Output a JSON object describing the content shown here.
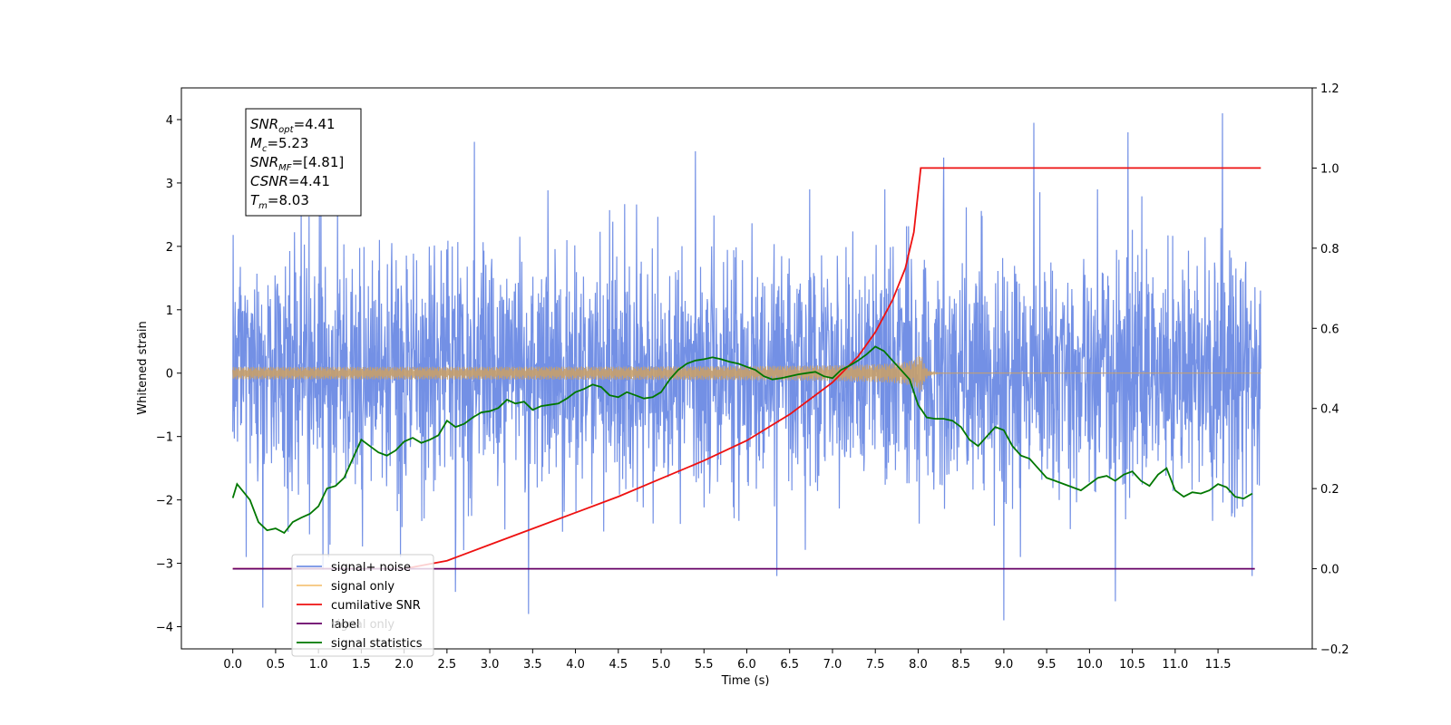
{
  "chart_data": {
    "type": "line",
    "title": "",
    "xlabel": "Time (s)",
    "ylabel": "Whitened strain",
    "ylabel_right": "",
    "xlim": [
      -0.6,
      12.6
    ],
    "ylim": [
      -4.35,
      4.5
    ],
    "ylim_right": [
      -0.2,
      1.2
    ],
    "x_ticks": [
      "0.0",
      "0.5",
      "1.0",
      "1.5",
      "2.0",
      "2.5",
      "3.0",
      "3.5",
      "4.0",
      "4.5",
      "5.0",
      "5.5",
      "6.0",
      "6.5",
      "7.0",
      "7.5",
      "8.0",
      "8.5",
      "9.0",
      "9.5",
      "10.0",
      "10.5",
      "11.0",
      "11.5"
    ],
    "y_ticks": [
      "4",
      "3",
      "2",
      "1",
      "0",
      "−1",
      "−2",
      "−3",
      "−4"
    ],
    "y_ticks_right": [
      "1.2",
      "1.0",
      "0.8",
      "0.6",
      "0.4",
      "0.2",
      "0.0",
      "−0.2"
    ],
    "grid": false,
    "legend_position": "lower-left",
    "colors": {
      "signal_noise": "#5b7de0",
      "signal_only": "#c8a06a",
      "cumulative_snr": "#ee1111",
      "label": "#660066",
      "statistics": "#007700"
    },
    "series": [
      {
        "name": "signal+ noise",
        "axis": "left",
        "style": "noise-band",
        "x_range": [
          0.0,
          12.0
        ],
        "amplitude_std": 1.0,
        "extreme_peaks": [
          [
            1.05,
            -3.1
          ],
          [
            2.82,
            3.65
          ],
          [
            3.45,
            -3.8
          ],
          [
            6.35,
            -3.2
          ],
          [
            9.0,
            -3.9
          ],
          [
            9.35,
            3.95
          ],
          [
            10.45,
            3.8
          ],
          [
            11.55,
            4.1
          ],
          [
            11.9,
            -3.2
          ],
          [
            5.4,
            3.5
          ],
          [
            8.3,
            3.4
          ],
          [
            0.35,
            -3.7
          ],
          [
            2.6,
            -3.45
          ],
          [
            10.3,
            -3.6
          ]
        ]
      },
      {
        "name": "signal only",
        "axis": "left",
        "style": "chirp",
        "x_range": [
          0.0,
          12.0
        ],
        "merger_time": 8.03,
        "peak_amplitude": 0.35
      },
      {
        "name": "cumilative SNR",
        "axis": "right",
        "style": "line",
        "x": [
          0.0,
          1.0,
          2.0,
          2.5,
          3.0,
          3.5,
          4.0,
          4.5,
          5.0,
          5.5,
          6.0,
          6.5,
          7.0,
          7.3,
          7.5,
          7.7,
          7.85,
          7.95,
          8.03,
          12.0
        ],
        "values": [
          0.0,
          0.0,
          0.0,
          0.02,
          0.06,
          0.1,
          0.14,
          0.18,
          0.225,
          0.27,
          0.32,
          0.385,
          0.465,
          0.53,
          0.59,
          0.67,
          0.75,
          0.84,
          1.0,
          1.0
        ]
      },
      {
        "name": "label",
        "axis": "right",
        "style": "line",
        "x": [
          0.0,
          11.93
        ],
        "values": [
          0.0,
          0.0
        ]
      },
      {
        "name": "signal only",
        "axis": "right",
        "style": "hidden",
        "x": [],
        "values": []
      },
      {
        "name": "signal statistics",
        "axis": "left",
        "style": "line",
        "x": [
          0.0,
          0.05,
          0.2,
          0.3,
          0.4,
          0.5,
          0.6,
          0.7,
          0.8,
          0.9,
          1.0,
          1.1,
          1.2,
          1.3,
          1.4,
          1.5,
          1.6,
          1.7,
          1.8,
          1.9,
          2.0,
          2.1,
          2.2,
          2.3,
          2.4,
          2.5,
          2.6,
          2.7,
          2.8,
          2.9,
          3.0,
          3.1,
          3.2,
          3.3,
          3.4,
          3.5,
          3.6,
          3.7,
          3.8,
          3.9,
          4.0,
          4.1,
          4.2,
          4.3,
          4.4,
          4.5,
          4.6,
          4.7,
          4.8,
          4.9,
          5.0,
          5.1,
          5.2,
          5.3,
          5.4,
          5.5,
          5.6,
          5.7,
          5.8,
          5.9,
          6.0,
          6.1,
          6.2,
          6.3,
          6.4,
          6.5,
          6.6,
          6.7,
          6.8,
          6.9,
          7.0,
          7.1,
          7.2,
          7.3,
          7.4,
          7.5,
          7.6,
          7.7,
          7.8,
          7.9,
          8.0,
          8.1,
          8.2,
          8.3,
          8.4,
          8.5,
          8.6,
          8.7,
          8.8,
          8.9,
          9.0,
          9.1,
          9.2,
          9.3,
          9.4,
          9.5,
          9.6,
          9.7,
          9.8,
          9.9,
          10.0,
          10.1,
          10.2,
          10.3,
          10.4,
          10.5,
          10.6,
          10.7,
          10.8,
          10.9,
          11.0,
          11.1,
          11.2,
          11.3,
          11.4,
          11.5,
          11.6,
          11.7,
          11.8,
          11.9
        ],
        "values": [
          -1.97,
          -1.75,
          -2.0,
          -2.35,
          -2.48,
          -2.45,
          -2.52,
          -2.35,
          -2.28,
          -2.22,
          -2.1,
          -1.82,
          -1.78,
          -1.65,
          -1.35,
          -1.05,
          -1.15,
          -1.25,
          -1.3,
          -1.22,
          -1.08,
          -1.02,
          -1.1,
          -1.05,
          -0.98,
          -0.75,
          -0.85,
          -0.8,
          -0.7,
          -0.62,
          -0.6,
          -0.55,
          -0.42,
          -0.48,
          -0.45,
          -0.58,
          -0.52,
          -0.5,
          -0.48,
          -0.4,
          -0.3,
          -0.25,
          -0.18,
          -0.22,
          -0.35,
          -0.38,
          -0.3,
          -0.35,
          -0.4,
          -0.38,
          -0.3,
          -0.1,
          0.05,
          0.15,
          0.2,
          0.22,
          0.25,
          0.22,
          0.18,
          0.15,
          0.1,
          0.05,
          -0.05,
          -0.1,
          -0.08,
          -0.05,
          -0.02,
          0.0,
          0.02,
          -0.05,
          -0.08,
          0.05,
          0.12,
          0.2,
          0.3,
          0.42,
          0.35,
          0.2,
          0.05,
          -0.1,
          -0.5,
          -0.7,
          -0.72,
          -0.72,
          -0.75,
          -0.85,
          -1.05,
          -1.15,
          -1.0,
          -0.85,
          -0.9,
          -1.15,
          -1.3,
          -1.35,
          -1.5,
          -1.65,
          -1.7,
          -1.75,
          -1.8,
          -1.85,
          -1.75,
          -1.65,
          -1.62,
          -1.7,
          -1.6,
          -1.55,
          -1.7,
          -1.78,
          -1.6,
          -1.5,
          -1.85,
          -1.95,
          -1.88,
          -1.9,
          -1.85,
          -1.75,
          -1.8,
          -1.95,
          -1.98,
          -1.9
        ]
      }
    ],
    "annotation": {
      "lines": [
        {
          "main": "SNR",
          "sub": "opt",
          "value": "=4.41"
        },
        {
          "main": "M",
          "sub": "c",
          "value": "=5.23"
        },
        {
          "main": "SNR",
          "sub": "MF",
          "value": "=[4.81]"
        },
        {
          "main": "CSNR",
          "sub": "",
          "value": "=4.41"
        },
        {
          "main": "T",
          "sub": "m",
          "value": "=8.03"
        }
      ]
    }
  }
}
